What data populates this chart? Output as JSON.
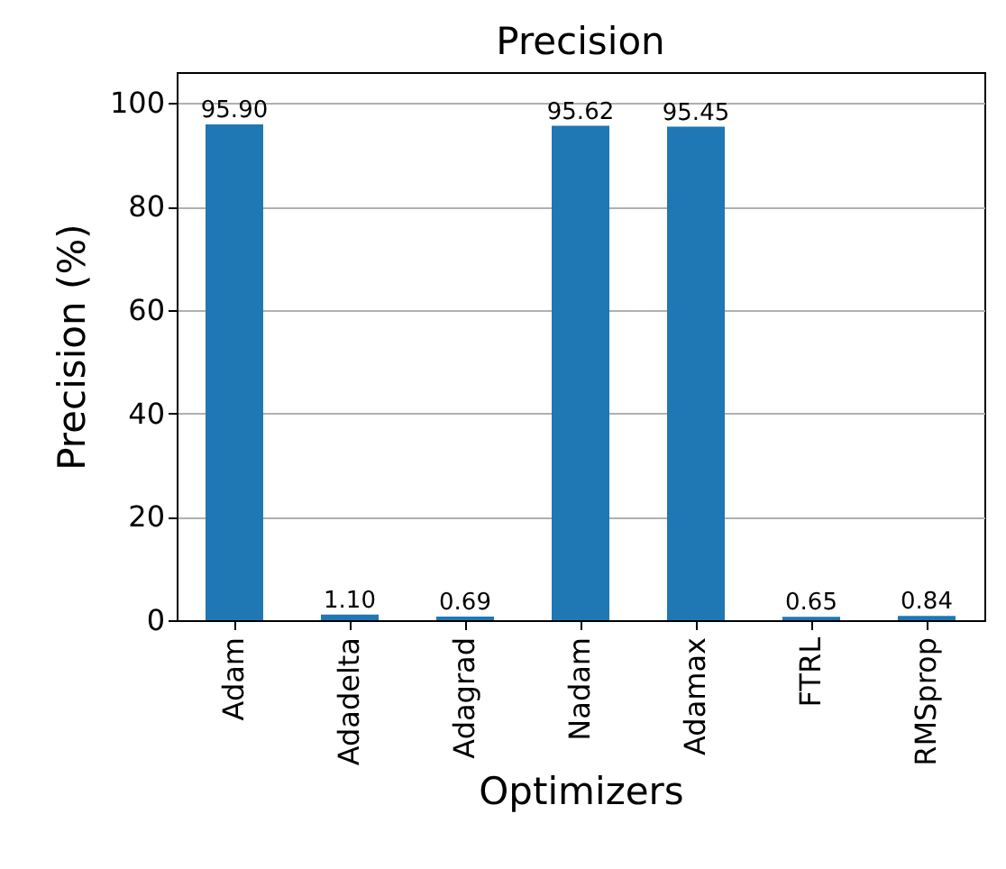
{
  "chart_data": {
    "type": "bar",
    "title": "Precision",
    "xlabel": "Optimizers",
    "ylabel": "Precision (%)",
    "categories": [
      "Adam",
      "Adadelta",
      "Adagrad",
      "Nadam",
      "Adamax",
      "FTRL",
      "RMSprop"
    ],
    "values": [
      95.9,
      1.1,
      0.69,
      95.62,
      95.45,
      0.65,
      0.84
    ],
    "value_labels": [
      "95.90",
      "1.10",
      "0.69",
      "95.62",
      "95.45",
      "0.65",
      "0.84"
    ],
    "color": "#1f77b4",
    "ylim": [
      0,
      106
    ],
    "yticks": [
      0,
      20,
      40,
      60,
      80,
      100
    ],
    "grid": "y"
  }
}
